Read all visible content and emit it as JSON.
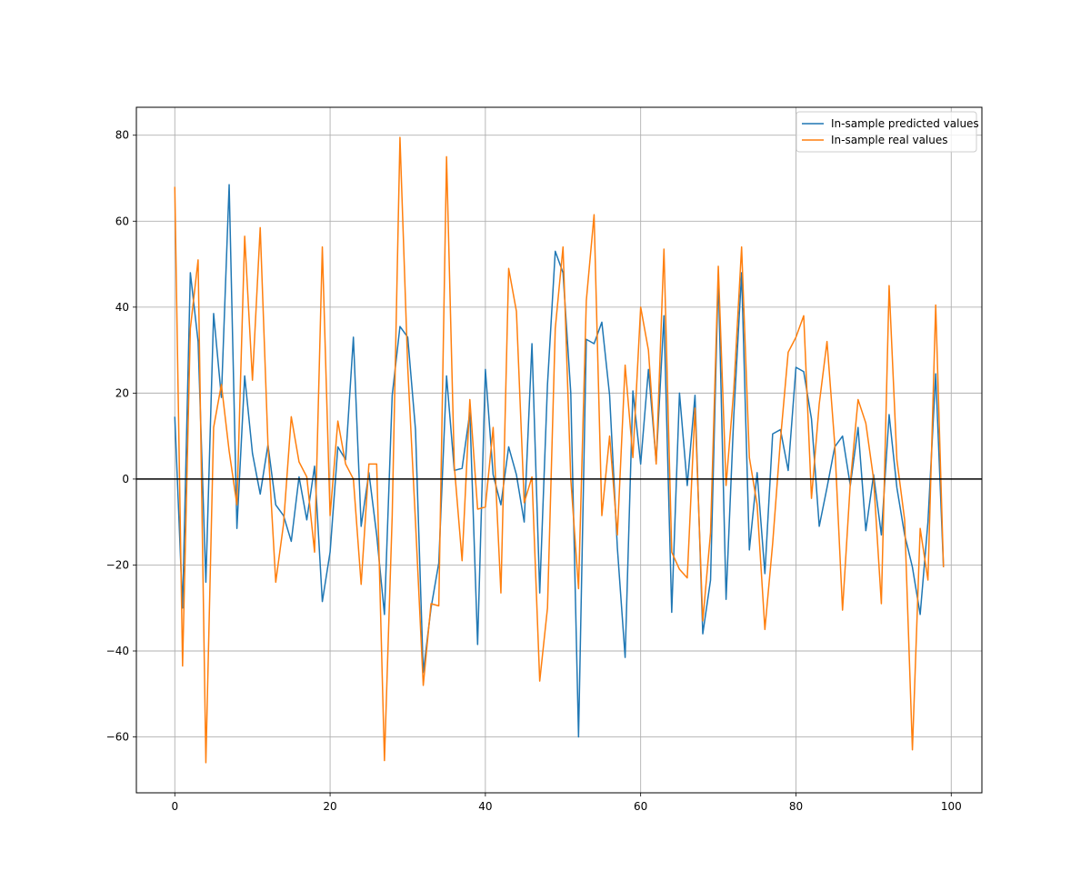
{
  "chart_data": {
    "type": "line",
    "x": [
      0,
      1,
      2,
      3,
      4,
      5,
      6,
      7,
      8,
      9,
      10,
      11,
      12,
      13,
      14,
      15,
      16,
      17,
      18,
      19,
      20,
      21,
      22,
      23,
      24,
      25,
      26,
      27,
      28,
      29,
      30,
      31,
      32,
      33,
      34,
      35,
      36,
      37,
      38,
      39,
      40,
      41,
      42,
      43,
      44,
      45,
      46,
      47,
      48,
      49,
      50,
      51,
      52,
      53,
      54,
      55,
      56,
      57,
      58,
      59,
      60,
      61,
      62,
      63,
      64,
      65,
      66,
      67,
      68,
      69,
      70,
      71,
      72,
      73,
      74,
      75,
      76,
      77,
      78,
      79,
      80,
      81,
      82,
      83,
      84,
      85,
      86,
      87,
      88,
      89,
      90,
      91,
      92,
      93,
      94,
      95,
      96,
      97,
      98,
      99
    ],
    "series": [
      {
        "name": "In-sample predicted values",
        "color": "#1f77b4",
        "values": [
          14.5,
          -30,
          48,
          32,
          -24,
          38.5,
          19,
          68.5,
          -11.5,
          24,
          6,
          -3.5,
          8,
          -6,
          -8.5,
          -14.5,
          0.5,
          -9.5,
          3,
          -28.5,
          -17,
          7.5,
          4.5,
          33,
          -11,
          1.5,
          -13,
          -31.5,
          19.5,
          35.5,
          33,
          11.5,
          -45,
          -30,
          -19.5,
          24,
          2,
          2.5,
          15.5,
          -38.5,
          25.5,
          1,
          -6,
          7.5,
          1,
          -10,
          31.5,
          -26.5,
          22,
          53,
          48,
          20,
          -60,
          32.5,
          31.5,
          36.5,
          19.5,
          -16,
          -41.5,
          20.5,
          3.5,
          25.5,
          4,
          38,
          -31,
          20,
          -1.5,
          19.5,
          -36,
          -23.5,
          47.5,
          -28,
          15,
          48,
          -16.5,
          1.5,
          -22,
          10.5,
          11.5,
          2,
          26,
          25,
          14,
          -11,
          -2,
          7.5,
          10,
          -1.5,
          12,
          -12,
          1,
          -13,
          15,
          -2,
          -13,
          -20.5,
          -31.5,
          -10,
          24.5,
          -20.5
        ]
      },
      {
        "name": "In-sample real values",
        "color": "#ff7f0e",
        "values": [
          68,
          -43.5,
          35,
          51,
          -66,
          12,
          22,
          6.5,
          -6,
          56.5,
          23,
          58.5,
          8,
          -24,
          -10.5,
          14.5,
          4,
          0.5,
          -17,
          54,
          -8.5,
          13.5,
          3.5,
          0,
          -24.5,
          3.5,
          3.5,
          -65.5,
          -8.5,
          79.5,
          26,
          -10,
          -48,
          -29,
          -29.5,
          75,
          3,
          -19,
          18.5,
          -7,
          -6.5,
          12,
          -26.5,
          49,
          39,
          -5.5,
          0.5,
          -47,
          -30,
          35,
          54,
          0,
          -25.5,
          41.5,
          61.5,
          -8.5,
          10,
          -13,
          26.5,
          5,
          40,
          30,
          3.5,
          53.5,
          -17,
          -21,
          -23,
          16.5,
          -33,
          -12.5,
          49.5,
          -1.5,
          21,
          54,
          5,
          -6,
          -35,
          -15,
          9,
          29.5,
          33,
          38,
          -4.5,
          17.5,
          32,
          8,
          -30.5,
          -1,
          18.5,
          13,
          0,
          -29,
          45,
          4.5,
          -9.5,
          -63,
          -11.5,
          -23.5,
          40.5,
          -20.5
        ]
      }
    ],
    "xlim": [
      -4.95,
      103.95
    ],
    "ylim": [
      -73,
      86.5
    ],
    "xticks": [
      0,
      20,
      40,
      60,
      80,
      100
    ],
    "yticks": [
      -60,
      -40,
      -20,
      0,
      20,
      40,
      60,
      80
    ],
    "xtick_labels": [
      "0",
      "20",
      "40",
      "60",
      "80",
      "100"
    ],
    "ytick_labels": [
      "−60",
      "−40",
      "−20",
      "0",
      "20",
      "40",
      "60",
      "80"
    ],
    "hline": 0,
    "grid": true,
    "legend_position": "top-right",
    "title": "",
    "xlabel": "",
    "ylabel": ""
  }
}
